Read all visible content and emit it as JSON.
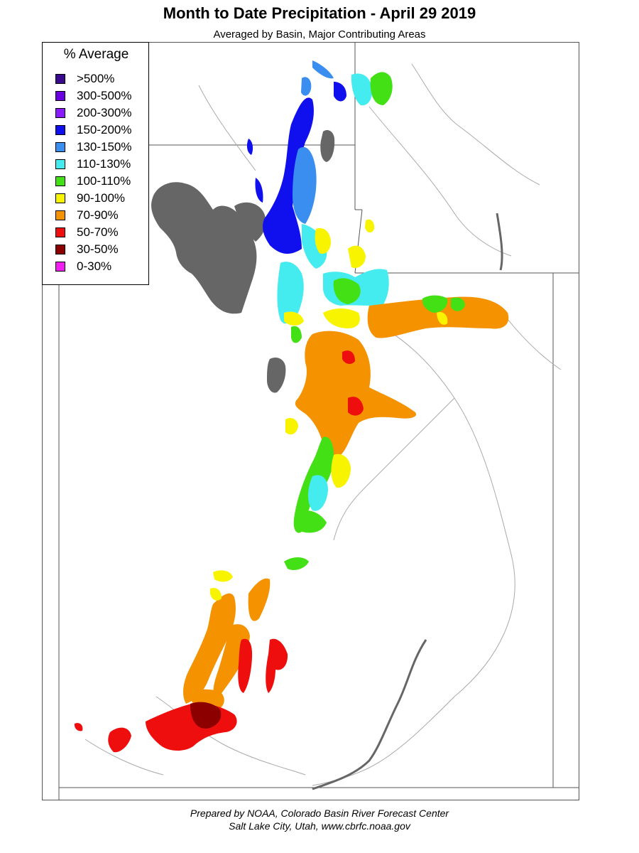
{
  "title": "Month to Date Precipitation - April 29 2019",
  "subtitle": "Averaged by Basin, Major Contributing Areas",
  "legend": {
    "title": "% Average",
    "items": [
      {
        "label": ">500%",
        "color": "#3b0a8c"
      },
      {
        "label": "300-500%",
        "color": "#6a00e0"
      },
      {
        "label": "200-300%",
        "color": "#8a1aff"
      },
      {
        "label": "150-200%",
        "color": "#1010ee"
      },
      {
        "label": "130-150%",
        "color": "#3a8ef0"
      },
      {
        "label": "110-130%",
        "color": "#44ecf0"
      },
      {
        "label": "100-110%",
        "color": "#44e016"
      },
      {
        "label": "90-100%",
        "color": "#f8f400"
      },
      {
        "label": "70-90%",
        "color": "#f59200"
      },
      {
        "label": "50-70%",
        "color": "#ee0e0e"
      },
      {
        "label": "30-50%",
        "color": "#8c0000"
      },
      {
        "label": "0-30%",
        "color": "#f01ef0"
      }
    ]
  },
  "footer": {
    "line1": "Prepared by NOAA, Colorado Basin River Forecast Center",
    "line2": "Salt Lake City, Utah, www.cbrfc.noaa.gov"
  },
  "colors": {
    "lake": "#666666",
    "border": "#555555",
    "river": "#aaaaaa"
  }
}
